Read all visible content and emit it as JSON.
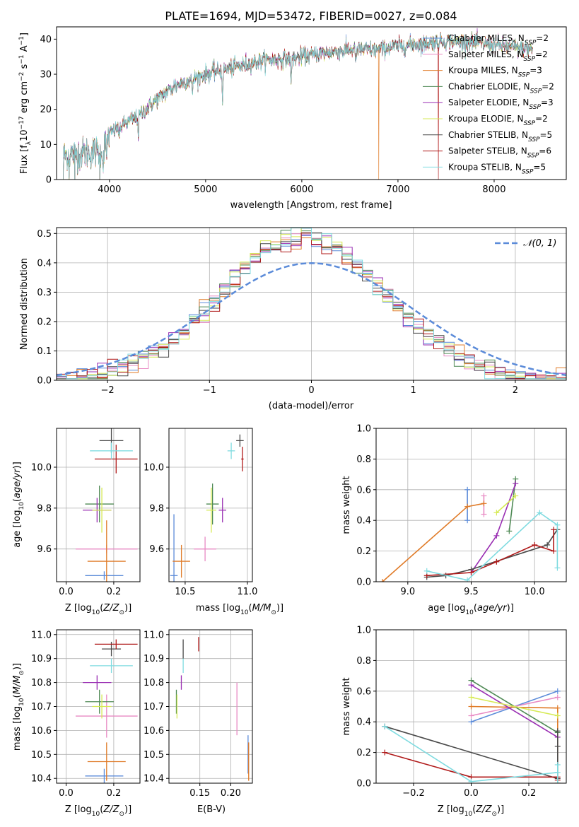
{
  "figure": {
    "title": "PLATE=1694, MJD=53472, FIBERID=0027, z=0.084"
  },
  "series_names": [
    "Chabrier MILES, N_SSP=2",
    "Salpeter MILES, N_SSP=2",
    "Kroupa MILES, N_SSP=3",
    "Chabrier ELODIE, N_SSP=2",
    "Salpeter ELODIE, N_SSP=3",
    "Kroupa ELODIE, N_SSP=2",
    "Chabrier STELIB, N_SSP=5",
    "Salpeter STELIB, N_SSP=6",
    "Kroupa STELIB, N_SSP=5"
  ],
  "series_colors": [
    "#5b8bd9",
    "#e88ac4",
    "#e07b28",
    "#4f8a55",
    "#9a2fb3",
    "#d6ea55",
    "#4a4a4a",
    "#b01a1a",
    "#7fdbe0"
  ],
  "chart_data": [
    {
      "id": "spectrum",
      "type": "line",
      "xlabel": "wavelength [Angstrom, rest frame]",
      "ylabel": "Flux [f_λ 10^-17 erg cm^-2 s^-1 A^-1]",
      "xlim": [
        3450,
        8750
      ],
      "ylim": [
        0,
        43.5
      ],
      "xticks": [
        4000,
        5000,
        6000,
        7000,
        8000
      ],
      "yticks": [
        0,
        10,
        20,
        30,
        40
      ],
      "grid": false,
      "legend": "top-right",
      "continuum_knots": [
        [
          3500,
          7
        ],
        [
          3700,
          7.5
        ],
        [
          3900,
          8
        ],
        [
          4000,
          13
        ],
        [
          4100,
          15
        ],
        [
          4300,
          18
        ],
        [
          4500,
          23
        ],
        [
          4700,
          27
        ],
        [
          5000,
          30
        ],
        [
          5300,
          32
        ],
        [
          5600,
          34
        ],
        [
          5900,
          34.5
        ],
        [
          6200,
          36
        ],
        [
          6500,
          37
        ],
        [
          6800,
          37
        ],
        [
          7000,
          38
        ],
        [
          7200,
          38.5
        ],
        [
          7500,
          39.5
        ],
        [
          7800,
          39
        ],
        [
          8100,
          38
        ],
        [
          8400,
          37
        ]
      ],
      "spectrum_range": [
        3520,
        8400
      ],
      "absorption_lines": [
        [
          3933,
          7
        ],
        [
          3968,
          6
        ],
        [
          4102,
          4
        ],
        [
          4300,
          5
        ],
        [
          4861,
          5
        ],
        [
          5175,
          8
        ],
        [
          5890,
          7
        ],
        [
          6563,
          4
        ]
      ],
      "dropouts": [
        {
          "series": 2,
          "x": 6800
        },
        {
          "series": 7,
          "x": 7420
        }
      ],
      "low_end_spikes_x": [
        3520,
        3580,
        3640,
        3900
      ]
    },
    {
      "id": "residual_histogram",
      "type": "histogram",
      "xlabel": "(data-model)/error",
      "ylabel": "Normed distribution",
      "xlim": [
        -2.5,
        2.5
      ],
      "ylim": [
        0,
        0.52
      ],
      "xticks": [
        -2,
        -1,
        0,
        1,
        2
      ],
      "yticks": [
        0.0,
        0.1,
        0.2,
        0.3,
        0.4,
        0.5
      ],
      "grid": true,
      "legend": "top-right",
      "reference_curve": {
        "label": "𝒩(0, 1)",
        "function": "normal",
        "mean": 0,
        "sigma": 1
      },
      "bin_width": 0.1,
      "widths": [
        0.8,
        0.78,
        0.82,
        0.8,
        0.81,
        0.79,
        0.8,
        0.83,
        0.79
      ],
      "bins_start": -2.5,
      "bins_end": 2.5
    },
    {
      "id": "age_vs_Z",
      "type": "errorbar",
      "xlabel": "Z [log10(Z/Z☉)]",
      "ylabel": "age [log10(age/yr)]",
      "xlim": [
        -0.04,
        0.31
      ],
      "ylim": [
        9.44,
        10.19
      ],
      "xticks": [
        0.0,
        0.2
      ],
      "yticks": [
        9.6,
        9.8,
        10.0
      ],
      "grid": true,
      "points": [
        {
          "s": 0,
          "x": 0.16,
          "y": 9.47,
          "xerr": 0.08,
          "yerr": 0.0
        },
        {
          "s": 1,
          "x": 0.17,
          "y": 9.6,
          "xerr": 0.13,
          "yerr": 0.0
        },
        {
          "s": 2,
          "x": 0.17,
          "y": 9.54,
          "xerr": 0.08,
          "yerr": 0.2
        },
        {
          "s": 3,
          "x": 0.14,
          "y": 9.82,
          "xerr": 0.06,
          "yerr": 0.09
        },
        {
          "s": 4,
          "x": 0.13,
          "y": 9.79,
          "xerr": 0.06,
          "yerr": 0.06
        },
        {
          "s": 5,
          "x": 0.15,
          "y": 9.79,
          "xerr": 0.04,
          "yerr": 0.11
        },
        {
          "s": 6,
          "x": 0.19,
          "y": 10.13,
          "xerr": 0.05,
          "yerr": 0.06
        },
        {
          "s": 7,
          "x": 0.21,
          "y": 10.04,
          "xerr": 0.09,
          "yerr": 0.07
        },
        {
          "s": 8,
          "x": 0.19,
          "y": 10.08,
          "xerr": 0.09,
          "yerr": 0.04
        }
      ]
    },
    {
      "id": "age_vs_mass",
      "type": "errorbar",
      "xlabel": "mass [log10(M/M☉)]",
      "ylabel": "",
      "xlim": [
        10.37,
        11.04
      ],
      "ylim": [
        9.44,
        10.19
      ],
      "xticks": [
        10.5,
        11.0
      ],
      "yticks": [
        9.6,
        9.8,
        10.0
      ],
      "grid": true,
      "points": [
        {
          "s": 0,
          "x": 10.41,
          "y": 9.47,
          "xerr": 0.03,
          "yerr": 0.3
        },
        {
          "s": 1,
          "x": 10.66,
          "y": 9.6,
          "xerr": 0.09,
          "yerr": 0.06
        },
        {
          "s": 2,
          "x": 10.47,
          "y": 9.54,
          "xerr": 0.07,
          "yerr": 0.08
        },
        {
          "s": 3,
          "x": 10.72,
          "y": 9.82,
          "xerr": 0.05,
          "yerr": 0.1
        },
        {
          "s": 4,
          "x": 10.8,
          "y": 9.79,
          "xerr": 0.03,
          "yerr": 0.06
        },
        {
          "s": 5,
          "x": 10.71,
          "y": 9.79,
          "xerr": 0.04,
          "yerr": 0.11
        },
        {
          "s": 6,
          "x": 10.94,
          "y": 10.13,
          "xerr": 0.03,
          "yerr": 0.03
        },
        {
          "s": 7,
          "x": 10.96,
          "y": 10.04,
          "xerr": 0.01,
          "yerr": 0.06
        },
        {
          "s": 8,
          "x": 10.87,
          "y": 10.08,
          "xerr": 0.03,
          "yerr": 0.04
        }
      ]
    },
    {
      "id": "weight_vs_age",
      "type": "line",
      "xlabel": "age [log10(age/yr)]",
      "ylabel": "mass weight",
      "xlim": [
        8.75,
        10.25
      ],
      "ylim": [
        0,
        1.0
      ],
      "xticks": [
        9.0,
        9.5,
        10.0
      ],
      "yticks": [
        0.0,
        0.2,
        0.4,
        0.6,
        0.8,
        1.0
      ],
      "grid": true,
      "series": [
        {
          "s": 0,
          "points": [
            [
              9.47,
              0.4
            ],
            [
              9.47,
              0.6
            ]
          ]
        },
        {
          "s": 1,
          "points": [
            [
              9.6,
              0.44
            ],
            [
              9.6,
              0.56
            ]
          ]
        },
        {
          "s": 2,
          "points": [
            [
              8.8,
              0.0
            ],
            [
              9.47,
              0.49
            ],
            [
              9.6,
              0.51
            ]
          ]
        },
        {
          "s": 3,
          "points": [
            [
              9.8,
              0.33
            ],
            [
              9.85,
              0.67
            ]
          ]
        },
        {
          "s": 4,
          "points": [
            [
              9.5,
              0.06
            ],
            [
              9.7,
              0.3
            ],
            [
              9.85,
              0.64
            ]
          ]
        },
        {
          "s": 5,
          "points": [
            [
              9.7,
              0.45
            ],
            [
              9.85,
              0.56
            ]
          ]
        },
        {
          "s": 6,
          "points": [
            [
              9.15,
              0.03
            ],
            [
              9.3,
              0.04
            ],
            [
              9.5,
              0.08
            ],
            [
              10.1,
              0.24
            ],
            [
              10.18,
              0.34
            ]
          ]
        },
        {
          "s": 7,
          "points": [
            [
              9.15,
              0.04
            ],
            [
              9.5,
              0.06
            ],
            [
              9.7,
              0.13
            ],
            [
              10.0,
              0.24
            ],
            [
              10.15,
              0.2
            ],
            [
              10.15,
              0.34
            ]
          ]
        },
        {
          "s": 8,
          "points": [
            [
              9.15,
              0.07
            ],
            [
              9.47,
              0.01
            ],
            [
              10.04,
              0.45
            ],
            [
              10.18,
              0.37
            ],
            [
              10.18,
              0.09
            ]
          ]
        }
      ]
    },
    {
      "id": "mass_vs_Z",
      "type": "errorbar",
      "xlabel": "Z [log10(Z/Z☉)]",
      "ylabel": "mass [log10(M/M☉)]",
      "xlim": [
        -0.04,
        0.31
      ],
      "ylim": [
        10.38,
        11.02
      ],
      "xticks": [
        0.0,
        0.2
      ],
      "yticks": [
        10.4,
        10.5,
        10.6,
        10.7,
        10.8,
        10.9,
        11.0
      ],
      "grid": true,
      "points": [
        {
          "s": 0,
          "x": 0.16,
          "y": 10.41,
          "xerr": 0.08,
          "yerr": 0.03
        },
        {
          "s": 1,
          "x": 0.17,
          "y": 10.66,
          "xerr": 0.13,
          "yerr": 0.09
        },
        {
          "s": 2,
          "x": 0.17,
          "y": 10.47,
          "xerr": 0.08,
          "yerr": 0.08
        },
        {
          "s": 3,
          "x": 0.14,
          "y": 10.72,
          "xerr": 0.06,
          "yerr": 0.05
        },
        {
          "s": 4,
          "x": 0.13,
          "y": 10.8,
          "xerr": 0.06,
          "yerr": 0.03
        },
        {
          "s": 5,
          "x": 0.15,
          "y": 10.7,
          "xerr": 0.04,
          "yerr": 0.05
        },
        {
          "s": 6,
          "x": 0.19,
          "y": 10.94,
          "xerr": 0.04,
          "yerr": 0.03
        },
        {
          "s": 7,
          "x": 0.21,
          "y": 10.96,
          "xerr": 0.09,
          "yerr": 0.02
        },
        {
          "s": 8,
          "x": 0.19,
          "y": 10.87,
          "xerr": 0.09,
          "yerr": 0.03
        }
      ]
    },
    {
      "id": "mass_vs_ebv",
      "type": "errorbar",
      "xlabel": "E(B-V)",
      "ylabel": "",
      "xlim": [
        0.1,
        0.235
      ],
      "ylim": [
        10.38,
        11.02
      ],
      "xticks": [
        0.15,
        0.2
      ],
      "yticks": [
        10.4,
        10.5,
        10.6,
        10.7,
        10.8,
        10.9,
        11.0
      ],
      "grid": true,
      "points": [
        {
          "s": 0,
          "x": 0.228,
          "y": 10.5,
          "xerr": 0,
          "yerr": 0.08
        },
        {
          "s": 1,
          "x": 0.21,
          "y": 10.69,
          "xerr": 0,
          "yerr": 0.11
        },
        {
          "s": 2,
          "x": 0.229,
          "y": 10.47,
          "xerr": 0,
          "yerr": 0.08
        },
        {
          "s": 3,
          "x": 0.112,
          "y": 10.72,
          "xerr": 0,
          "yerr": 0.05
        },
        {
          "s": 4,
          "x": 0.12,
          "y": 10.8,
          "xerr": 0,
          "yerr": 0.03
        },
        {
          "s": 5,
          "x": 0.113,
          "y": 10.7,
          "xerr": 0,
          "yerr": 0.05
        },
        {
          "s": 6,
          "x": 0.123,
          "y": 10.94,
          "xerr": 0,
          "yerr": 0.04
        },
        {
          "s": 7,
          "x": 0.148,
          "y": 10.96,
          "xerr": 0,
          "yerr": 0.03
        },
        {
          "s": 8,
          "x": 0.123,
          "y": 10.87,
          "xerr": 0,
          "yerr": 0.03
        }
      ]
    },
    {
      "id": "weight_vs_Z",
      "type": "line",
      "xlabel": "Z [log10(Z/Z☉)]",
      "ylabel": "mass weight",
      "xlim": [
        -0.33,
        0.33
      ],
      "ylim": [
        0,
        1.0
      ],
      "xticks": [
        -0.2,
        0.0,
        0.2
      ],
      "yticks": [
        0.0,
        0.2,
        0.4,
        0.6,
        0.8,
        1.0
      ],
      "grid": true,
      "series": [
        {
          "s": 0,
          "points": [
            [
              0.0,
              0.4
            ],
            [
              0.3,
              0.6
            ]
          ]
        },
        {
          "s": 1,
          "points": [
            [
              0.0,
              0.44
            ],
            [
              0.3,
              0.56
            ]
          ]
        },
        {
          "s": 2,
          "points": [
            [
              0.0,
              0.5
            ],
            [
              0.3,
              0.49
            ],
            [
              0.3,
              0.0
            ]
          ]
        },
        {
          "s": 3,
          "points": [
            [
              0.0,
              0.67
            ],
            [
              0.3,
              0.33
            ]
          ]
        },
        {
          "s": 4,
          "points": [
            [
              0.0,
              0.64
            ],
            [
              0.3,
              0.3
            ]
          ]
        },
        {
          "s": 5,
          "points": [
            [
              0.0,
              0.56
            ],
            [
              0.3,
              0.44
            ]
          ]
        },
        {
          "s": 6,
          "points": [
            [
              -0.3,
              0.37
            ],
            [
              0.3,
              0.03
            ],
            [
              0.3,
              0.24
            ],
            [
              0.3,
              0.34
            ]
          ]
        },
        {
          "s": 7,
          "points": [
            [
              -0.3,
              0.2
            ],
            [
              0.0,
              0.04
            ],
            [
              0.3,
              0.04
            ],
            [
              0.3,
              0.02
            ]
          ]
        },
        {
          "s": 8,
          "points": [
            [
              -0.3,
              0.37
            ],
            [
              0.0,
              0.01
            ],
            [
              0.3,
              0.07
            ],
            [
              0.3,
              0.12
            ],
            [
              0.3,
              0.0
            ]
          ]
        }
      ]
    }
  ]
}
